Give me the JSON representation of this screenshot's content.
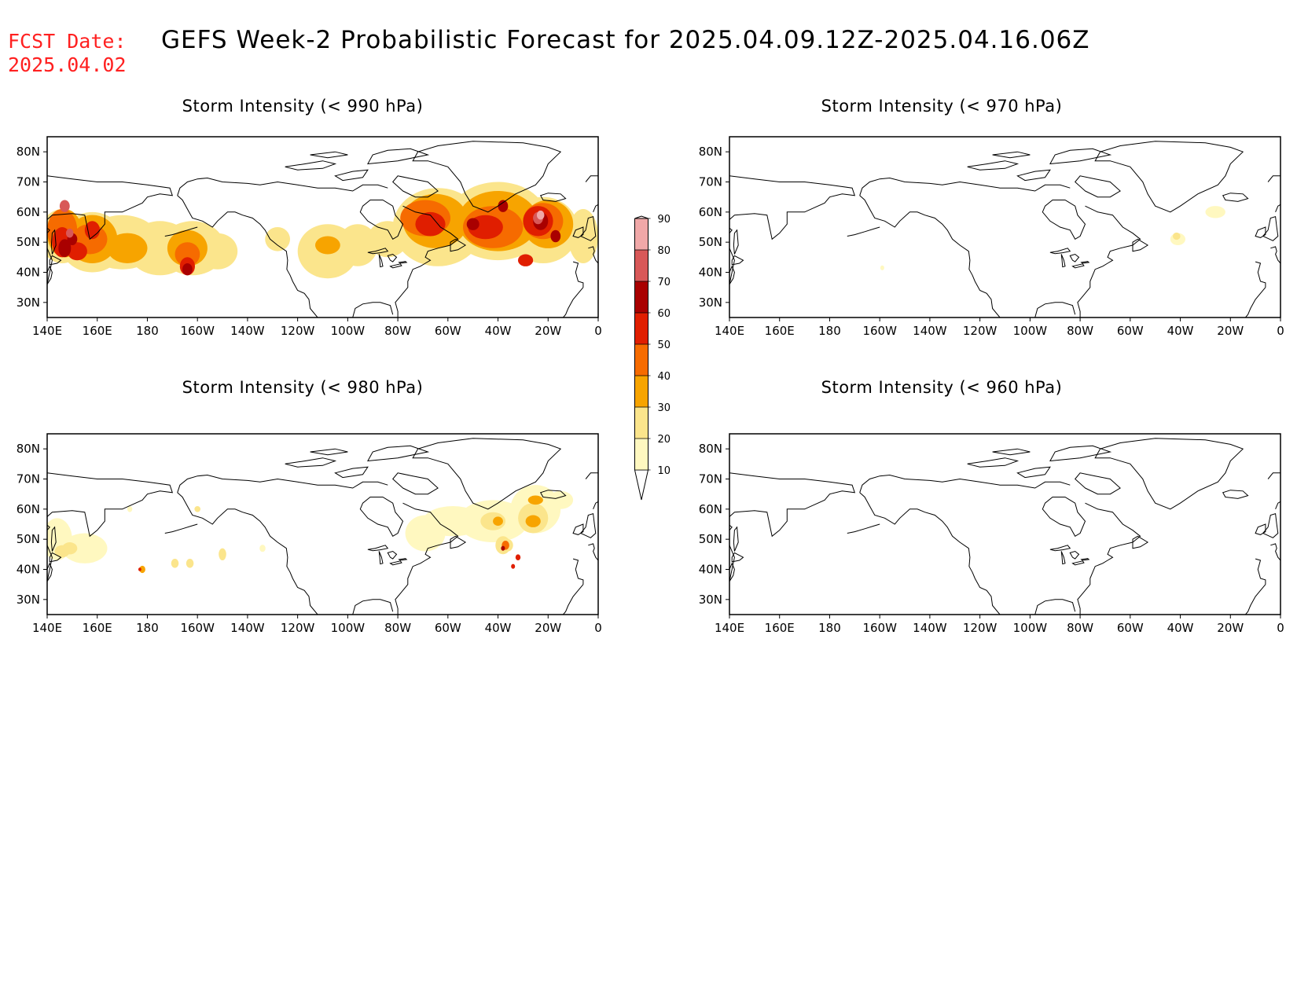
{
  "header": {
    "fcst_label": "FCST Date:",
    "fcst_date": "2025.04.02",
    "title": "GEFS Week-2 Probabilistic Forecast for 2025.04.09.12Z-2025.04.16.06Z"
  },
  "panels": [
    {
      "title": "Storm Intensity (< 990 hPa)"
    },
    {
      "title": "Storm Intensity (< 970 hPa)"
    },
    {
      "title": "Storm Intensity (< 980 hPa)"
    },
    {
      "title": "Storm Intensity (< 960 hPa)"
    }
  ],
  "axes": {
    "lon_labels": [
      "140E",
      "160E",
      "180",
      "160W",
      "140W",
      "120W",
      "100W",
      "80W",
      "60W",
      "40W",
      "20W",
      "0"
    ],
    "lat_labels": [
      "80N",
      "70N",
      "60N",
      "50N",
      "40N",
      "30N"
    ],
    "lon_range": [
      140,
      360
    ],
    "lat_range": [
      25,
      85
    ]
  },
  "colorbar": {
    "levels": [
      "10",
      "20",
      "30",
      "40",
      "50",
      "60",
      "70",
      "80",
      "90"
    ],
    "colors": [
      "#fff8c0",
      "#fbe58c",
      "#f7a400",
      "#f66b00",
      "#e01e00",
      "#a90000",
      "#d85858",
      "#f0a8a8",
      "#fde8e8"
    ]
  },
  "colors": {
    "fcst_text": "#ff2020",
    "coastline": "#000000"
  }
}
